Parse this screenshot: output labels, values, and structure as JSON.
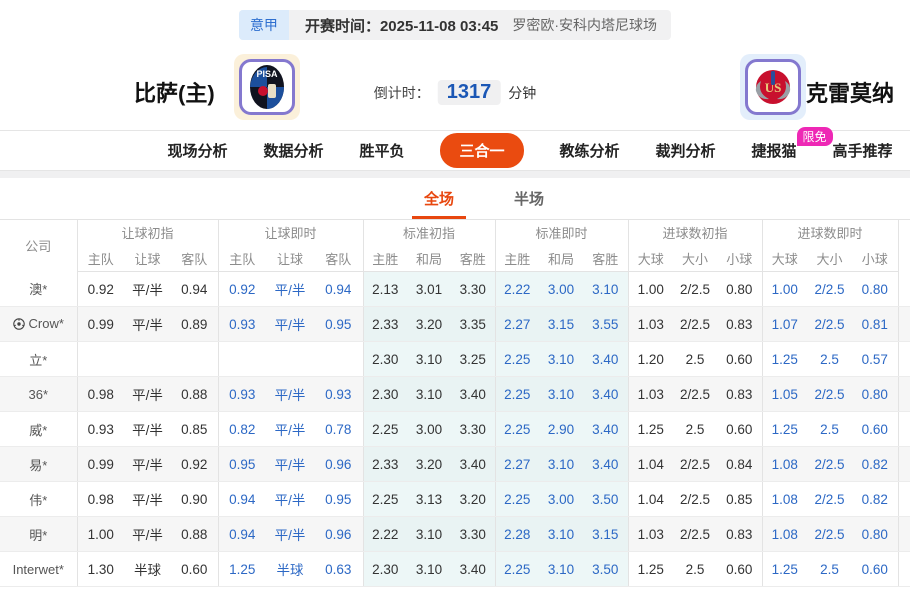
{
  "match_bar": {
    "league": "意甲",
    "kickoff_label": "开赛时间：",
    "kickoff_time": "2025-11-08 03:45",
    "venue": "罗密欧·安科内塔尼球场"
  },
  "teams": {
    "home_name": "比萨(主)",
    "home_logo_text": "PISA",
    "away_name": "克雷莫纳",
    "away_logo_text": "USC",
    "countdown_label": "倒计时：",
    "countdown_value": "1317",
    "countdown_unit": "分钟"
  },
  "nav": {
    "items": [
      {
        "label": "现场分析"
      },
      {
        "label": "数据分析"
      },
      {
        "label": "胜平负"
      },
      {
        "label": "三合一",
        "active": true
      },
      {
        "label": "教练分析"
      },
      {
        "label": "裁判分析"
      },
      {
        "label": "捷报猫",
        "badge": "限免"
      },
      {
        "label": "高手推荐"
      }
    ]
  },
  "subtabs": [
    {
      "label": "全场",
      "active": true
    },
    {
      "label": "半场",
      "active": false
    }
  ],
  "odds_table": {
    "company_header": "公司",
    "groups": [
      {
        "label": "让球初指",
        "cols": [
          "主队",
          "让球",
          "客队"
        ]
      },
      {
        "label": "让球即时",
        "cols": [
          "主队",
          "让球",
          "客队"
        ]
      },
      {
        "label": "标准初指",
        "cols": [
          "主胜",
          "和局",
          "客胜"
        ]
      },
      {
        "label": "标准即时",
        "cols": [
          "主胜",
          "和局",
          "客胜"
        ]
      },
      {
        "label": "进球数初指",
        "cols": [
          "大球",
          "大小",
          "小球"
        ]
      },
      {
        "label": "进球数即时",
        "cols": [
          "大球",
          "大小",
          "小球"
        ]
      }
    ],
    "rows": [
      {
        "company": "澳*",
        "icon": false,
        "cells": [
          "0.92",
          "平/半",
          "0.94",
          "0.92",
          "平/半",
          "0.94",
          "2.13",
          "3.01",
          "3.30",
          "2.22",
          "3.00",
          "3.10",
          "1.00",
          "2/2.5",
          "0.80",
          "1.00",
          "2/2.5",
          "0.80"
        ]
      },
      {
        "company": "Crow*",
        "icon": true,
        "cells": [
          "0.99",
          "平/半",
          "0.89",
          "0.93",
          "平/半",
          "0.95",
          "2.33",
          "3.20",
          "3.35",
          "2.27",
          "3.15",
          "3.55",
          "1.03",
          "2/2.5",
          "0.83",
          "1.07",
          "2/2.5",
          "0.81"
        ]
      },
      {
        "company": "立*",
        "icon": false,
        "cells": [
          "",
          "",
          "",
          "",
          "",
          "",
          "2.30",
          "3.10",
          "3.25",
          "2.25",
          "3.10",
          "3.40",
          "1.20",
          "2.5",
          "0.60",
          "1.25",
          "2.5",
          "0.57"
        ]
      },
      {
        "company": "36*",
        "icon": false,
        "cells": [
          "0.98",
          "平/半",
          "0.88",
          "0.93",
          "平/半",
          "0.93",
          "2.30",
          "3.10",
          "3.40",
          "2.25",
          "3.10",
          "3.40",
          "1.03",
          "2/2.5",
          "0.83",
          "1.05",
          "2/2.5",
          "0.80"
        ]
      },
      {
        "company": "威*",
        "icon": false,
        "cells": [
          "0.93",
          "平/半",
          "0.85",
          "0.82",
          "平/半",
          "0.78",
          "2.25",
          "3.00",
          "3.30",
          "2.25",
          "2.90",
          "3.40",
          "1.25",
          "2.5",
          "0.60",
          "1.25",
          "2.5",
          "0.60"
        ]
      },
      {
        "company": "易*",
        "icon": false,
        "cells": [
          "0.99",
          "平/半",
          "0.92",
          "0.95",
          "平/半",
          "0.96",
          "2.33",
          "3.20",
          "3.40",
          "2.27",
          "3.10",
          "3.40",
          "1.04",
          "2/2.5",
          "0.84",
          "1.08",
          "2/2.5",
          "0.82"
        ]
      },
      {
        "company": "伟*",
        "icon": false,
        "cells": [
          "0.98",
          "平/半",
          "0.90",
          "0.94",
          "平/半",
          "0.95",
          "2.25",
          "3.13",
          "3.20",
          "2.25",
          "3.00",
          "3.50",
          "1.04",
          "2/2.5",
          "0.85",
          "1.08",
          "2/2.5",
          "0.82"
        ]
      },
      {
        "company": "明*",
        "icon": false,
        "cells": [
          "1.00",
          "平/半",
          "0.88",
          "0.94",
          "平/半",
          "0.96",
          "2.22",
          "3.10",
          "3.30",
          "2.28",
          "3.10",
          "3.15",
          "1.03",
          "2/2.5",
          "0.83",
          "1.08",
          "2/2.5",
          "0.80"
        ]
      },
      {
        "company": "Interwet*",
        "icon": false,
        "cells": [
          "1.30",
          "半球",
          "0.60",
          "1.25",
          "半球",
          "0.63",
          "2.30",
          "3.10",
          "3.40",
          "2.25",
          "3.10",
          "3.50",
          "1.25",
          "2.5",
          "0.60",
          "1.25",
          "2.5",
          "0.60"
        ]
      }
    ]
  },
  "colors": {
    "accent_orange": "#ea4b10",
    "live_odds_blue": "#2c68c5",
    "standard_cols_bg": "#edf7f7",
    "badge_magenta": "#ee28b5",
    "league_blue": "#2e6fd0",
    "countdown_blue": "#1b57b5"
  }
}
